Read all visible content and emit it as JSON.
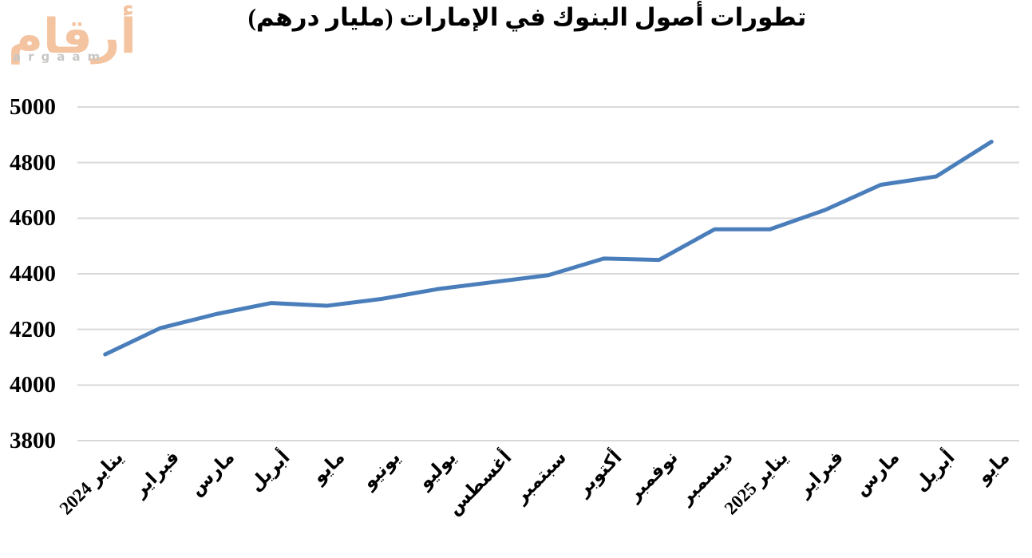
{
  "logo": {
    "arabic": "أرقام",
    "latin": "argaam",
    "arabic_color": "#f4c4a1",
    "latin_color": "#c9c7c5"
  },
  "chart_data": {
    "type": "line",
    "title": "تطورات أصول البنوك في الإمارات (مليار درهم)",
    "categories": [
      "يناير 2024",
      "فبراير",
      "مارس",
      "أبريل",
      "مايو",
      "يونيو",
      "يوليو",
      "أغسطس",
      "سبتمبر",
      "أكتوبر",
      "نوفمبر",
      "ديسمبر",
      "يناير 2025",
      "فبراير",
      "مارس",
      "أبريل",
      "مايو"
    ],
    "values": [
      4110,
      4205,
      4255,
      4295,
      4285,
      4310,
      4345,
      4370,
      4395,
      4455,
      4450,
      4560,
      4560,
      4630,
      4720,
      4750,
      4875
    ],
    "xlabel": "",
    "ylabel": "",
    "ylim": [
      3800,
      5000
    ],
    "yticks": [
      3800,
      4000,
      4200,
      4400,
      4600,
      4800,
      5000
    ],
    "grid": true,
    "legend": "none",
    "x_label_rotation_deg": 45,
    "line_color": "#4a7ebb",
    "gridline_color": "#d9d9d9",
    "background_color": "#ffffff"
  }
}
